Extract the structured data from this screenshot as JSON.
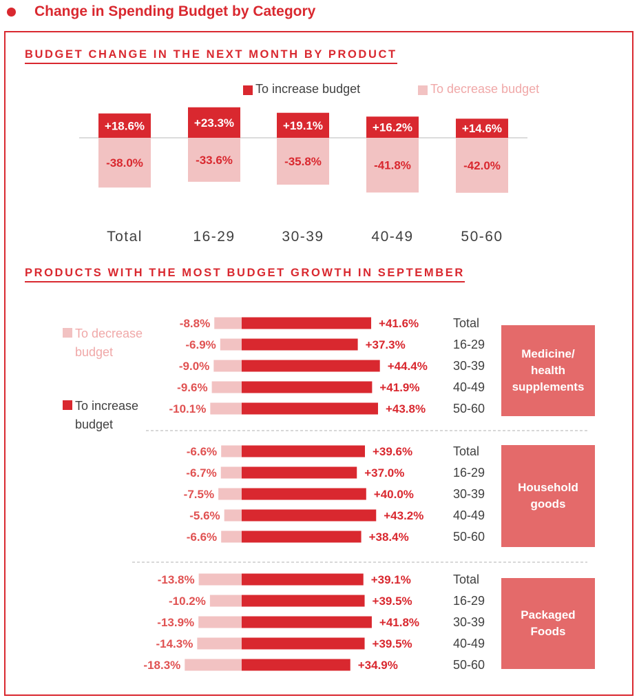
{
  "header": {
    "title": "Change in Spending Budget by Category"
  },
  "colors": {
    "increase": "#d9282f",
    "decrease": "#f2c2c2",
    "category_box": "#e46a6a",
    "text": "#404040"
  },
  "chart_data": [
    {
      "type": "bar",
      "title": "BUDGET CHANGE IN THE NEXT MONTH BY PRODUCT",
      "categories": [
        "Total",
        "16-29",
        "30-39",
        "40-49",
        "50-60"
      ],
      "series": [
        {
          "name": "To increase budget",
          "values": [
            18.6,
            23.3,
            19.1,
            16.2,
            14.6
          ],
          "labels": [
            "+18.6%",
            "+23.3%",
            "+19.1%",
            "+16.2%",
            "+14.6%"
          ]
        },
        {
          "name": "To decrease budget",
          "values": [
            -38.0,
            -33.6,
            -35.8,
            -41.8,
            -42.0
          ],
          "labels": [
            "-38.0%",
            "-33.6%",
            "-35.8%",
            "-41.8%",
            "-42.0%"
          ]
        }
      ],
      "legend": "top-right"
    },
    {
      "type": "bar",
      "orientation": "horizontal",
      "title": "PRODUCTS WITH THE MOST BUDGET GROWTH IN SEPTEMBER",
      "legend_labels": {
        "decrease": "To decrease budget",
        "increase": "To increase budget"
      },
      "legend": "left",
      "groups": [
        {
          "name": "Medicine/ health supplements",
          "lines": [
            "Medicine/",
            "health",
            "supplements"
          ],
          "rows": [
            {
              "label": "Total",
              "increase": 41.6,
              "decrease": -8.8,
              "inc_label": "+41.6%",
              "dec_label": "-8.8%"
            },
            {
              "label": "16-29",
              "increase": 37.3,
              "decrease": -6.9,
              "inc_label": "+37.3%",
              "dec_label": "-6.9%"
            },
            {
              "label": "30-39",
              "increase": 44.4,
              "decrease": -9.0,
              "inc_label": "+44.4%",
              "dec_label": "-9.0%"
            },
            {
              "label": "40-49",
              "increase": 41.9,
              "decrease": -9.6,
              "inc_label": "+41.9%",
              "dec_label": "-9.6%"
            },
            {
              "label": "50-60",
              "increase": 43.8,
              "decrease": -10.1,
              "inc_label": "+43.8%",
              "dec_label": "-10.1%"
            }
          ]
        },
        {
          "name": "Household goods",
          "lines": [
            "Household",
            "goods"
          ],
          "rows": [
            {
              "label": "Total",
              "increase": 39.6,
              "decrease": -6.6,
              "inc_label": "+39.6%",
              "dec_label": "-6.6%"
            },
            {
              "label": "16-29",
              "increase": 37.0,
              "decrease": -6.7,
              "inc_label": "+37.0%",
              "dec_label": "-6.7%"
            },
            {
              "label": "30-39",
              "increase": 40.0,
              "decrease": -7.5,
              "inc_label": "+40.0%",
              "dec_label": "-7.5%"
            },
            {
              "label": "40-49",
              "increase": 43.2,
              "decrease": -5.6,
              "inc_label": "+43.2%",
              "dec_label": "-5.6%"
            },
            {
              "label": "50-60",
              "increase": 38.4,
              "decrease": -6.6,
              "inc_label": "+38.4%",
              "dec_label": "-6.6%"
            }
          ]
        },
        {
          "name": "Packaged Foods",
          "lines": [
            "Packaged",
            "Foods"
          ],
          "rows": [
            {
              "label": "Total",
              "increase": 39.1,
              "decrease": -13.8,
              "inc_label": "+39.1%",
              "dec_label": "-13.8%"
            },
            {
              "label": "16-29",
              "increase": 39.5,
              "decrease": -10.2,
              "inc_label": "+39.5%",
              "dec_label": "-10.2%"
            },
            {
              "label": "30-39",
              "increase": 41.8,
              "decrease": -13.9,
              "inc_label": "+41.8%",
              "dec_label": "-13.9%"
            },
            {
              "label": "40-49",
              "increase": 39.5,
              "decrease": -14.3,
              "inc_label": "+39.5%",
              "dec_label": "-14.3%"
            },
            {
              "label": "50-60",
              "increase": 34.9,
              "decrease": -18.3,
              "inc_label": "+34.9%",
              "dec_label": "-18.3%"
            }
          ]
        }
      ]
    }
  ]
}
